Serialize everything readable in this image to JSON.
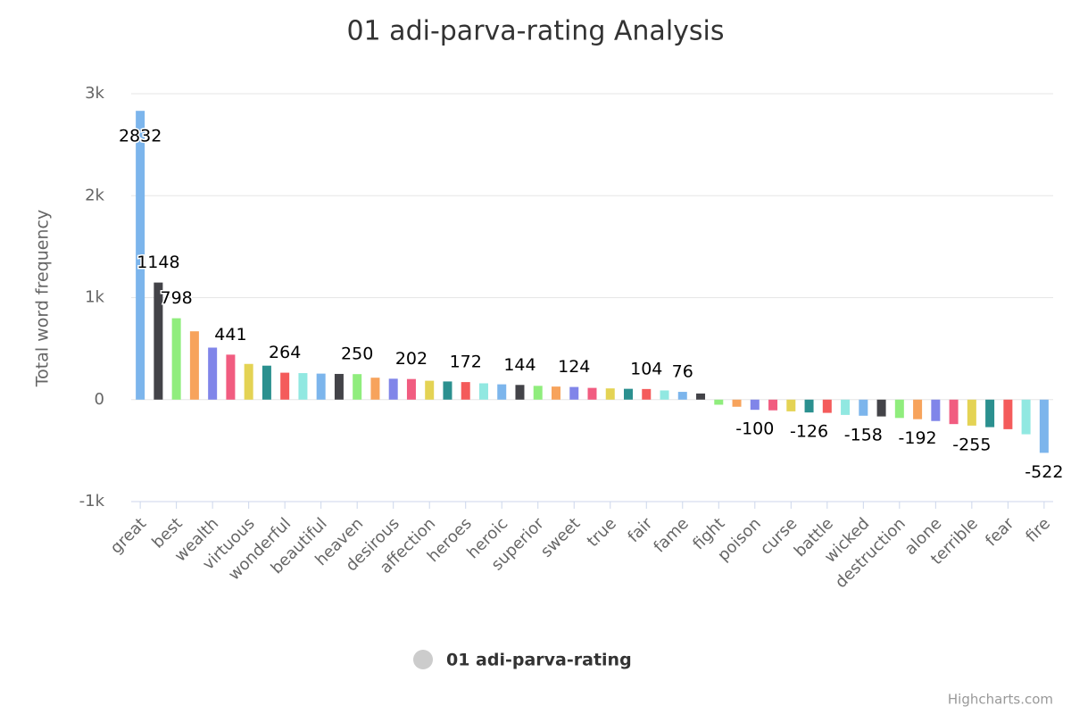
{
  "chart_data": {
    "type": "bar",
    "title": "01 adi-parva-rating Analysis",
    "y_axis_label": "Total word frequency",
    "credits": "Highcharts.com",
    "series_name": "01 adi-parva-rating",
    "categories": [
      "great",
      null,
      "best",
      null,
      "wealth",
      null,
      "virtuous",
      null,
      "wonderful",
      null,
      "beautiful",
      null,
      "heaven",
      null,
      "desirous",
      null,
      "affection",
      null,
      "heroes",
      null,
      "heroic",
      null,
      "superior",
      null,
      "sweet",
      null,
      "true",
      null,
      "fair",
      null,
      "fame",
      null,
      "fight",
      null,
      "poison",
      null,
      "curse",
      null,
      "battle",
      null,
      "wicked",
      null,
      "destruction",
      null,
      "alone",
      null,
      "terrible",
      null,
      "fear",
      null,
      "fire"
    ],
    "values": [
      2832,
      1148,
      798,
      670,
      510,
      441,
      350,
      333,
      264,
      260,
      255,
      252,
      250,
      215,
      205,
      202,
      185,
      178,
      172,
      160,
      150,
      144,
      135,
      128,
      124,
      115,
      110,
      106,
      104,
      90,
      76,
      60,
      -50,
      -70,
      -100,
      -105,
      -115,
      -126,
      -130,
      -150,
      -158,
      -165,
      -180,
      -192,
      -210,
      -240,
      -255,
      -270,
      -290,
      -340,
      -522
    ],
    "value_labels": [
      "2832",
      "1148",
      "798",
      null,
      null,
      "441",
      null,
      null,
      "264",
      null,
      null,
      null,
      "250",
      null,
      null,
      "202",
      null,
      null,
      "172",
      null,
      null,
      "144",
      null,
      null,
      "124",
      null,
      null,
      null,
      "104",
      null,
      "76",
      null,
      null,
      null,
      "-100",
      null,
      null,
      "-126",
      null,
      null,
      "-158",
      null,
      null,
      "-192",
      null,
      null,
      "-255",
      null,
      null,
      null,
      "-522"
    ],
    "colors": [
      "#7cb5ec",
      "#434348",
      "#90ed7d",
      "#f7a35c",
      "#8085e9",
      "#f15c80",
      "#e4d354",
      "#2b908f",
      "#f45b5b",
      "#91e8e1"
    ],
    "ylim": [
      -1000,
      3000
    ],
    "yticks": [
      {
        "value": -1000,
        "label": "-1k"
      },
      0,
      {
        "value": 1000,
        "label": "1k"
      },
      {
        "value": 2000,
        "label": "2k"
      },
      {
        "value": 3000,
        "label": "3k"
      }
    ],
    "grid": true
  }
}
